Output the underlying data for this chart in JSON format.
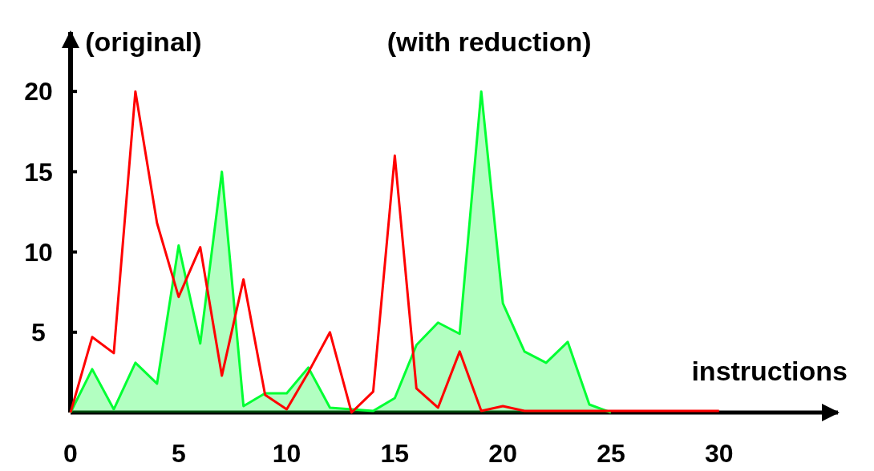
{
  "chart_data": {
    "type": "line",
    "xlabel": "instructions",
    "xlim": [
      0,
      35.5
    ],
    "ylim": [
      0,
      23.7
    ],
    "xticks": [
      0,
      5,
      10,
      15,
      20,
      25,
      30
    ],
    "yticks": [
      5,
      10,
      15,
      20
    ],
    "grid": false,
    "marker": "none",
    "line_style": "solid",
    "series": [
      {
        "name": "(original)",
        "color": "#ff0000",
        "x": [
          0,
          1,
          2,
          3,
          4,
          5,
          6,
          7,
          8,
          9,
          10,
          11,
          12,
          13,
          14,
          15,
          16,
          17,
          18,
          19,
          20,
          21,
          22,
          23,
          24,
          25,
          26,
          27,
          28,
          29,
          30
        ],
        "values": [
          0,
          4.7,
          3.7,
          20,
          11.8,
          7.2,
          10.3,
          2.3,
          8.3,
          1.1,
          0.2,
          2.5,
          5,
          0,
          1.3,
          16,
          1.5,
          0.3,
          3.8,
          0.1,
          0.4,
          0.1,
          0.1,
          0.1,
          0.1,
          0.1,
          0.1,
          0.1,
          0.1,
          0.1,
          0.1
        ]
      },
      {
        "name": "(with reduction)",
        "type": "area",
        "color": "#00ff33",
        "x": [
          0,
          1,
          2,
          3,
          4,
          5,
          6,
          7,
          8,
          9,
          10,
          11,
          12,
          13,
          14,
          15,
          16,
          17,
          18,
          19,
          20,
          21,
          22,
          23,
          24,
          25
        ],
        "values": [
          0,
          2.7,
          0.2,
          3.1,
          1.8,
          10.4,
          4.3,
          15,
          0.4,
          1.2,
          1.2,
          2.8,
          0.3,
          0.2,
          0.1,
          0.9,
          4.2,
          5.6,
          4.9,
          20,
          6.8,
          3.8,
          3.1,
          4.4,
          0.5,
          0
        ]
      }
    ]
  }
}
